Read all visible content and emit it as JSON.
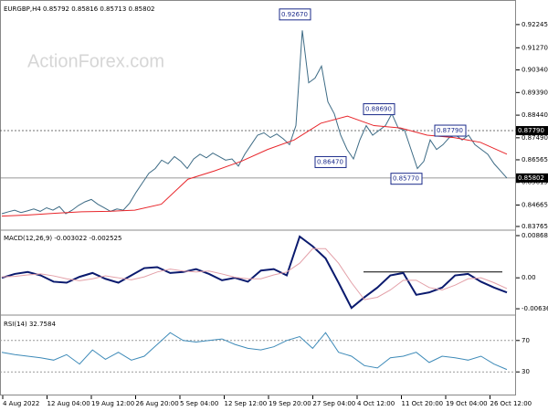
{
  "watermark": "ActionForex.com",
  "xlabels": [
    "4 Aug 2022",
    "12 Aug 04:00",
    "19 Aug 12:00",
    "26 Aug 20:00",
    "5 Sep 04:00",
    "12 Sep 12:00",
    "19 Sep 20:00",
    "27 Sep 04:00",
    "4 Oct 12:00",
    "11 Oct 20:00",
    "19 Oct 04:00",
    "26 Oct 12:00"
  ],
  "chart_data": [
    {
      "type": "line",
      "title": "EURGBP,H4 0.85792 0.85816 0.85713 0.85802",
      "ylim": [
        0.8361,
        0.932
      ],
      "yticks": [
        0.92245,
        {
          "value": 0.9127,
          "label": "0.91270"
        },
        {
          "value": 0.9034,
          "label": "0.90340"
        },
        {
          "value": 0.8939,
          "label": "0.89390"
        },
        {
          "value": 0.8844,
          "label": "0.88440"
        },
        {
          "value": 0.8749,
          "label": "0.87490"
        },
        0.86565,
        0.85615,
        0.84665,
        0.83765
      ],
      "series": [
        {
          "name": "EURGBP",
          "color": "#3d6b85",
          "values": [
            0.843,
            0.8438,
            0.8445,
            0.8435,
            0.8442,
            0.845,
            0.844,
            0.8455,
            0.8445,
            0.846,
            0.843,
            0.8445,
            0.8465,
            0.848,
            0.849,
            0.847,
            0.8455,
            0.844,
            0.845,
            0.8445,
            0.8475,
            0.852,
            0.856,
            0.86,
            0.862,
            0.8655,
            0.864,
            0.867,
            0.865,
            0.862,
            0.866,
            0.868,
            0.8665,
            0.8685,
            0.867,
            0.8655,
            0.866,
            0.863,
            0.868,
            0.872,
            0.876,
            0.877,
            0.875,
            0.8765,
            0.8745,
            0.872,
            0.88,
            0.92,
            0.898,
            0.9,
            0.905,
            0.89,
            0.885,
            0.876,
            0.87,
            0.866,
            0.874,
            0.88,
            0.876,
            0.878,
            0.88,
            0.885,
            0.879,
            0.878,
            0.87,
            0.862,
            0.865,
            0.874,
            0.87,
            0.872,
            0.875,
            0.876,
            0.874,
            0.876,
            0.872,
            0.87,
            0.868,
            0.864,
            0.861,
            0.858
          ]
        },
        {
          "name": "MA",
          "color": "#e8262b",
          "values": [
            0.842,
            0.8425,
            0.8432,
            0.8438,
            0.844,
            0.8445,
            0.847,
            0.8575,
            0.861,
            0.865,
            0.87,
            0.874,
            0.881,
            0.884,
            0.88,
            0.879,
            0.876,
            0.875,
            0.873,
            0.868
          ]
        }
      ],
      "annotations": [
        {
          "value": 0.9267,
          "label": "0.92670"
        },
        {
          "value": 0.8869,
          "label": "0.88690"
        },
        {
          "value": 0.8647,
          "label": "0.86470"
        },
        {
          "value": 0.8577,
          "label": "0.85770"
        },
        {
          "value": 0.8779,
          "label": "0.87790"
        }
      ],
      "levels": [
        {
          "value": 0.8779,
          "label": "0.87790"
        },
        {
          "value": 0.85802,
          "label": "0.85802"
        }
      ]
    },
    {
      "type": "line",
      "title": "MACD(12,26,9) -0.003022 -0.002525",
      "ylim": [
        -0.00767,
        0.00962
      ],
      "yticks": [
        0.008686,
        {
          "value": 0,
          "label": "0.00"
        },
        -0.006366
      ],
      "series": [
        {
          "name": "MACD",
          "color": "#0a1a6e",
          "values": [
            0,
            0.0008,
            0.0012,
            0.0005,
            -0.0008,
            -0.001,
            0.0002,
            0.001,
            -0.0002,
            -0.001,
            0.0005,
            0.002,
            0.0022,
            0.001,
            0.0012,
            0.0018,
            0.0008,
            -0.0005,
            0,
            -0.0008,
            0.0015,
            0.0018,
            0.0005,
            0.0085,
            0.0065,
            0.004,
            -0.001,
            -0.0062,
            -0.004,
            -0.002,
            0.0005,
            0.001,
            -0.0035,
            -0.003,
            -0.002,
            0.0005,
            0.0008,
            -0.0008,
            -0.002,
            -0.003
          ]
        },
        {
          "name": "Signal",
          "color": "#e3a0a8",
          "values": [
            0.0002,
            0.0003,
            0.0006,
            0.0008,
            0.0004,
            -0.0002,
            -0.0006,
            -0.0002,
            0.0004,
            0,
            -0.0004,
            0.0002,
            0.0012,
            0.0018,
            0.0014,
            0.0012,
            0.0014,
            0.0008,
            0.0001,
            -0.0002,
            -0.0002,
            0.0006,
            0.0012,
            0.003,
            0.006,
            0.006,
            0.003,
            -0.001,
            -0.0045,
            -0.004,
            -0.0025,
            -0.0005,
            -0.0005,
            -0.002,
            -0.0025,
            -0.0015,
            -0.0002,
            0,
            -0.001,
            -0.0022
          ]
        }
      ],
      "trend_level": 0.0012
    },
    {
      "type": "line",
      "title": "RSI(14) 32.7584",
      "ylim": [
        0,
        100
      ],
      "yticks": [
        70,
        30
      ],
      "series": [
        {
          "name": "RSI",
          "color": "#3d8ab8",
          "values": [
            55,
            52,
            50,
            48,
            45,
            52,
            40,
            58,
            46,
            55,
            45,
            50,
            65,
            80,
            70,
            68,
            70,
            72,
            65,
            60,
            58,
            62,
            70,
            75,
            60,
            80,
            55,
            50,
            38,
            35,
            48,
            50,
            55,
            42,
            50,
            48,
            45,
            50,
            40,
            33
          ]
        }
      ]
    }
  ]
}
